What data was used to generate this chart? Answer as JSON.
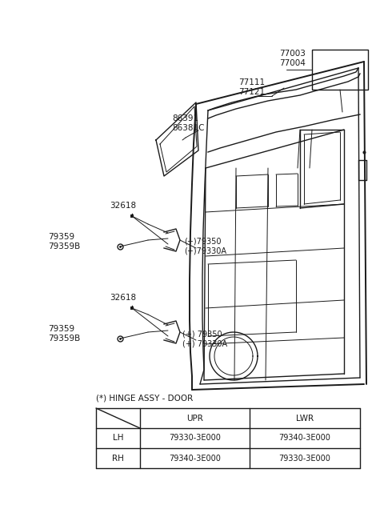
{
  "bg_color": "#ffffff",
  "line_color": "#1a1a1a",
  "table_title": "(*) HINGE ASSY - DOOR",
  "table_headers": [
    "",
    "UPR",
    "LWR"
  ],
  "table_rows": [
    [
      "LH",
      "79330-3E000",
      "79340-3E000"
    ],
    [
      "RH",
      "79340-3E000",
      "79330-3E000"
    ]
  ],
  "label_77003": "77003",
  "label_77004": "77004",
  "label_77111": "77111",
  "label_77121": "77121",
  "label_86391": "86391",
  "label_86381C": "86381C",
  "label_32618": "32618",
  "label_79359": "79359",
  "label_79359B": "79359B",
  "label_79350_u": "(+)79350",
  "label_79330A_u": "(+)79330A",
  "label_79350_l": "(+) 79350",
  "label_79330A_l": "(+) 79330A"
}
